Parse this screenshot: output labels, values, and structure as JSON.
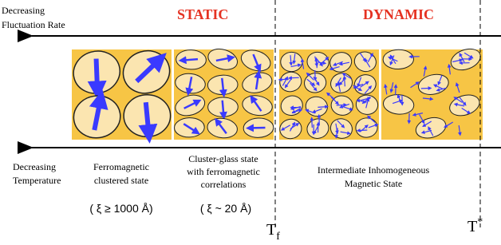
{
  "header": {
    "fluctuation": [
      "Decreasing",
      "Fluctuation Rate"
    ],
    "static": "STATIC",
    "dynamic": "DYNAMIC",
    "temperature": [
      "Decreasing",
      "Temperature"
    ]
  },
  "states": [
    {
      "label": [
        "Ferromagnetic",
        "clustered state"
      ],
      "size": "( ξ ≥ 1000 Å)"
    },
    {
      "label": [
        "Cluster-glass state",
        "with ferromagnetic",
        "correlations"
      ],
      "size": "( ξ ~ 20 Å)"
    },
    {
      "label": [
        "Intermediate Inhomogeneous",
        "Magnetic  State"
      ]
    }
  ],
  "temperatures": [
    {
      "main": "T",
      "sub": "f"
    },
    {
      "main": "T",
      "sup": "*"
    }
  ]
}
